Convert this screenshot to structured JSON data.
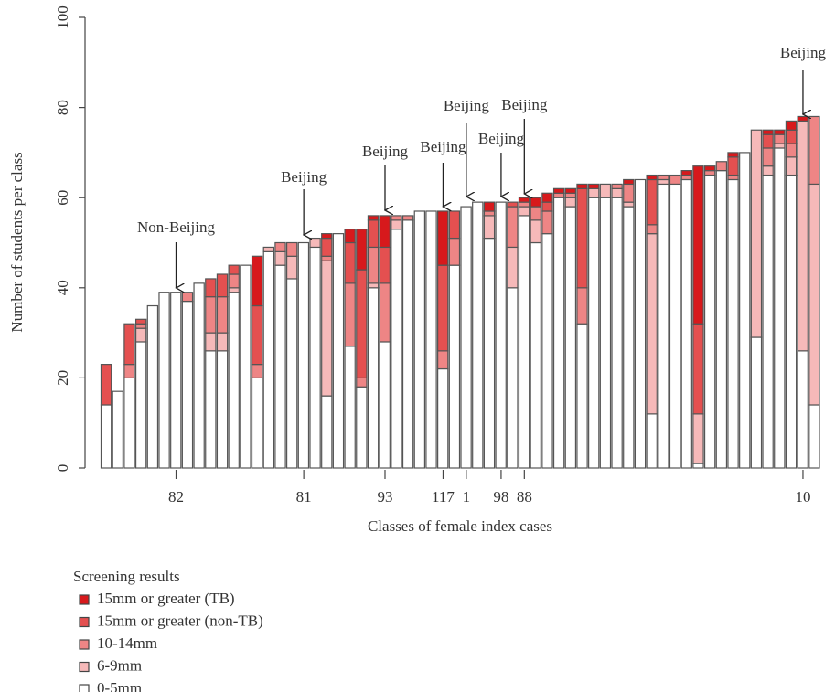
{
  "chart_data": {
    "type": "stacked-bar",
    "x_label": "Classes of female index cases",
    "y_label": "Number of students per class",
    "ylim": [
      0,
      100
    ],
    "yticks": [
      0,
      20,
      40,
      60,
      80,
      100
    ],
    "categories": [
      null,
      null,
      null,
      null,
      null,
      null,
      "82",
      null,
      null,
      null,
      null,
      null,
      null,
      null,
      null,
      null,
      null,
      "81",
      null,
      null,
      null,
      null,
      null,
      null,
      "93",
      null,
      null,
      null,
      null,
      "117",
      null,
      "1",
      null,
      null,
      "98",
      null,
      "88",
      null,
      null,
      null,
      null,
      null,
      null,
      null,
      null,
      null,
      null,
      null,
      null,
      null,
      null,
      null,
      null,
      null,
      null,
      null,
      null,
      null,
      null,
      null,
      "10",
      null
    ],
    "legend_title": "Screening results",
    "series": [
      {
        "name": "0-5mm",
        "color": "#ffffff",
        "values": [
          14,
          17,
          20,
          28,
          36,
          39,
          39,
          37,
          41,
          26,
          26,
          39,
          45,
          20,
          48,
          45,
          42,
          50,
          49,
          16,
          52,
          27,
          18,
          40,
          28,
          53,
          55,
          57,
          57,
          22,
          45,
          58,
          59,
          51,
          59,
          40,
          56,
          50,
          52,
          60,
          58,
          32,
          60,
          60,
          60,
          58,
          64,
          12,
          63,
          63,
          64,
          1,
          65,
          66,
          64,
          70,
          29,
          65,
          71,
          65,
          26,
          14
        ]
      },
      {
        "name": "6-9mm",
        "color": "#f6b9b9",
        "values": [
          0,
          0,
          0,
          3,
          0,
          0,
          0,
          0,
          0,
          4,
          4,
          1,
          0,
          0,
          1,
          3,
          5,
          0,
          2,
          30,
          0,
          0,
          0,
          1,
          0,
          2,
          0,
          0,
          0,
          0,
          0,
          0,
          0,
          5,
          0,
          9,
          2,
          5,
          0,
          0,
          2,
          0,
          2,
          3,
          2,
          1,
          0,
          40,
          1,
          0,
          0,
          11,
          0,
          0,
          0,
          0,
          46,
          2,
          1,
          4,
          51,
          49
        ]
      },
      {
        "name": "10-14mm",
        "color": "#ee8585",
        "values": [
          0,
          0,
          3,
          1,
          0,
          0,
          0,
          2,
          0,
          8,
          8,
          3,
          0,
          3,
          0,
          2,
          3,
          0,
          0,
          1,
          0,
          14,
          2,
          8,
          13,
          1,
          1,
          0,
          0,
          4,
          6,
          0,
          0,
          1,
          0,
          9,
          1,
          3,
          5,
          1,
          1,
          8,
          0,
          0,
          1,
          4,
          0,
          2,
          1,
          2,
          1,
          0,
          1,
          2,
          1,
          0,
          0,
          4,
          2,
          3,
          0,
          15
        ]
      },
      {
        "name": "15mm or greater (non-TB)",
        "color": "#e45050",
        "values": [
          9,
          0,
          9,
          1,
          0,
          0,
          0,
          0,
          0,
          4,
          5,
          2,
          0,
          13,
          0,
          0,
          0,
          0,
          0,
          4,
          0,
          9,
          24,
          6,
          8,
          0,
          0,
          0,
          0,
          19,
          6,
          0,
          0,
          0,
          0,
          1,
          0,
          0,
          2,
          0,
          0,
          22,
          0,
          0,
          0,
          0,
          0,
          10,
          0,
          0,
          0,
          20,
          0,
          0,
          4,
          0,
          0,
          3,
          0,
          3,
          0,
          0
        ]
      },
      {
        "name": "15mm or greater (TB)",
        "color": "#d7191c",
        "values": [
          0,
          0,
          0,
          0,
          0,
          0,
          0,
          0,
          0,
          0,
          0,
          0,
          0,
          11,
          0,
          0,
          0,
          0,
          0,
          1,
          0,
          3,
          9,
          1,
          7,
          0,
          0,
          0,
          0,
          12,
          0,
          0,
          0,
          2,
          0,
          0,
          1,
          2,
          2,
          1,
          1,
          1,
          1,
          0,
          0,
          1,
          0,
          1,
          0,
          0,
          1,
          35,
          1,
          0,
          1,
          0,
          0,
          1,
          1,
          2,
          1,
          0
        ]
      }
    ],
    "annotations": [
      {
        "text": "Non-Beijing",
        "category": "82"
      },
      {
        "text": "Beijing",
        "category": "81"
      },
      {
        "text": "Beijing",
        "category": "93"
      },
      {
        "text": "Beijing",
        "category": "117"
      },
      {
        "text": "Beijing",
        "category": "1"
      },
      {
        "text": "Beijing",
        "category": "98"
      },
      {
        "text": "Beijing",
        "category": "88"
      },
      {
        "text": "Beijing",
        "category": "10"
      }
    ]
  }
}
